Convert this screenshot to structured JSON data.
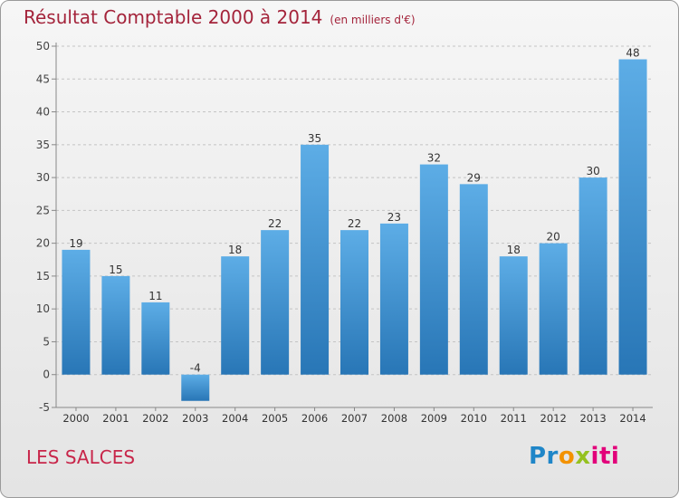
{
  "title": "Résultat Comptable 2000 à 2014",
  "subtitle": "(en milliers d'€)",
  "place_name": "LES SALCES",
  "brand": {
    "p1": "Pr",
    "p2": "o",
    "p3": "x",
    "p4": "iti"
  },
  "colors": {
    "bar_top": "#5dade6",
    "bar_bottom": "#2876b6",
    "title": "#a4243b",
    "place": "#c8264a"
  },
  "chart_data": {
    "type": "bar",
    "categories": [
      "2000",
      "2001",
      "2002",
      "2003",
      "2004",
      "2005",
      "2006",
      "2007",
      "2008",
      "2009",
      "2010",
      "2011",
      "2012",
      "2013",
      "2014"
    ],
    "values": [
      19,
      15,
      11,
      -4,
      18,
      22,
      35,
      22,
      23,
      32,
      29,
      18,
      20,
      30,
      48
    ],
    "title": "Résultat Comptable 2000 à 2014",
    "xlabel": "",
    "ylabel": "",
    "ylim": [
      -5,
      50
    ],
    "yticks": [
      -5,
      0,
      5,
      10,
      15,
      20,
      25,
      30,
      35,
      40,
      45,
      50
    ],
    "grid": true
  }
}
